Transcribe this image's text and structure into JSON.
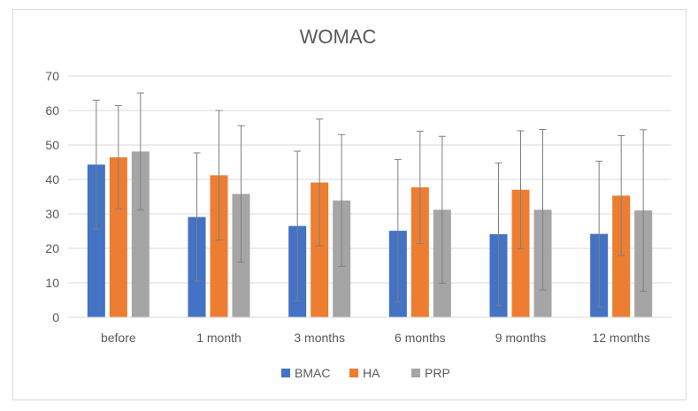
{
  "chart_data": {
    "type": "bar",
    "title": "WOMAC",
    "xlabel": "",
    "ylabel": "",
    "categories": [
      "before",
      "1 month",
      "3 months",
      "6 months",
      "9 months",
      "12 months"
    ],
    "ylim": [
      0,
      70
    ],
    "yticks": [
      0,
      10,
      20,
      30,
      40,
      50,
      60,
      70
    ],
    "grid": true,
    "legend": "bottom",
    "series": [
      {
        "name": "BMAC",
        "color": "#4472C4",
        "values": [
          44.3,
          29.1,
          26.5,
          25.1,
          24.1,
          24.2
        ],
        "error_high": [
          63,
          47.7,
          48.2,
          45.8,
          44.8,
          45.3
        ],
        "error_low": [
          25.6,
          10.5,
          4.8,
          4.4,
          3.4,
          3.1
        ]
      },
      {
        "name": "HA",
        "color": "#ED7D31",
        "values": [
          46.4,
          41.2,
          39.1,
          37.7,
          37.0,
          35.3
        ],
        "error_high": [
          61.4,
          60.0,
          57.5,
          54.0,
          54.1,
          52.7
        ],
        "error_low": [
          31.4,
          22.4,
          20.7,
          21.4,
          19.9,
          17.9
        ]
      },
      {
        "name": "PRP",
        "color": "#A5A5A5",
        "values": [
          48.1,
          35.8,
          33.9,
          31.2,
          31.2,
          31.0
        ],
        "error_high": [
          65.1,
          55.6,
          53.0,
          52.5,
          54.5,
          54.4
        ],
        "error_low": [
          31.1,
          16.0,
          14.8,
          9.9,
          7.9,
          7.6
        ]
      }
    ]
  }
}
